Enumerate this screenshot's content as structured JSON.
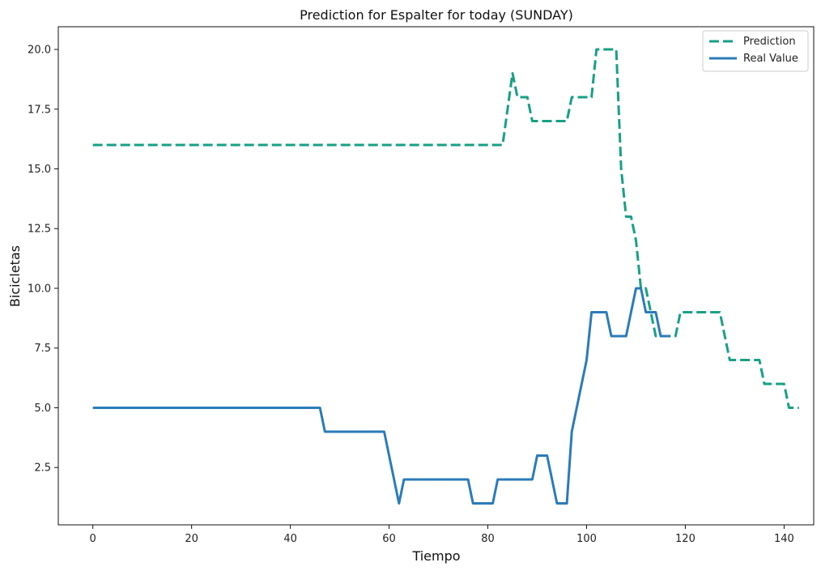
{
  "chart_data": {
    "type": "line",
    "title": "Prediction for Espalter for today (SUNDAY)",
    "xlabel": "Tiempo",
    "ylabel": "Bicicletas",
    "xlim": [
      -7,
      146
    ],
    "ylim": [
      0.1,
      20.95
    ],
    "xticks": [
      0,
      20,
      40,
      60,
      80,
      100,
      120,
      140
    ],
    "yticks": [
      2.5,
      5.0,
      7.5,
      10.0,
      12.5,
      15.0,
      17.5,
      20.0
    ],
    "xtick_labels": [
      "0",
      "20",
      "40",
      "60",
      "80",
      "100",
      "120",
      "140"
    ],
    "ytick_labels": [
      "2.5",
      "5.0",
      "7.5",
      "10.0",
      "12.5",
      "15.0",
      "17.5",
      "20.0"
    ],
    "grid": false,
    "legend_position": "top-right",
    "series": [
      {
        "name": "Prediction",
        "color": "#17a085",
        "style": "dashed",
        "points": [
          [
            0,
            16
          ],
          [
            83,
            16
          ],
          [
            85,
            19
          ],
          [
            86,
            18
          ],
          [
            88,
            18
          ],
          [
            89,
            17
          ],
          [
            96,
            17
          ],
          [
            97,
            18
          ],
          [
            101,
            18
          ],
          [
            102,
            20
          ],
          [
            106,
            20
          ],
          [
            107,
            15
          ],
          [
            108,
            13
          ],
          [
            109,
            13
          ],
          [
            110,
            12
          ],
          [
            111,
            10
          ],
          [
            112,
            10
          ],
          [
            113,
            9
          ],
          [
            114,
            8
          ],
          [
            118,
            8
          ],
          [
            119,
            9
          ],
          [
            127,
            9
          ],
          [
            129,
            7
          ],
          [
            135,
            7
          ],
          [
            136,
            6
          ],
          [
            140,
            6
          ],
          [
            141,
            5
          ],
          [
            143,
            5
          ]
        ]
      },
      {
        "name": "Real Value",
        "color": "#2b7bb9",
        "style": "solid",
        "points": [
          [
            0,
            5
          ],
          [
            46,
            5
          ],
          [
            47,
            4
          ],
          [
            59,
            4
          ],
          [
            62,
            1
          ],
          [
            63,
            2
          ],
          [
            76,
            2
          ],
          [
            77,
            1
          ],
          [
            81,
            1
          ],
          [
            82,
            2
          ],
          [
            89,
            2
          ],
          [
            90,
            3
          ],
          [
            92,
            3
          ],
          [
            94,
            1
          ],
          [
            96,
            1
          ],
          [
            97,
            4
          ],
          [
            100,
            7
          ],
          [
            101,
            9
          ],
          [
            104,
            9
          ],
          [
            105,
            8
          ],
          [
            108,
            8
          ],
          [
            110,
            10
          ],
          [
            111,
            10
          ],
          [
            112,
            9
          ],
          [
            114,
            9
          ],
          [
            115,
            8
          ],
          [
            117,
            8
          ]
        ]
      }
    ]
  }
}
